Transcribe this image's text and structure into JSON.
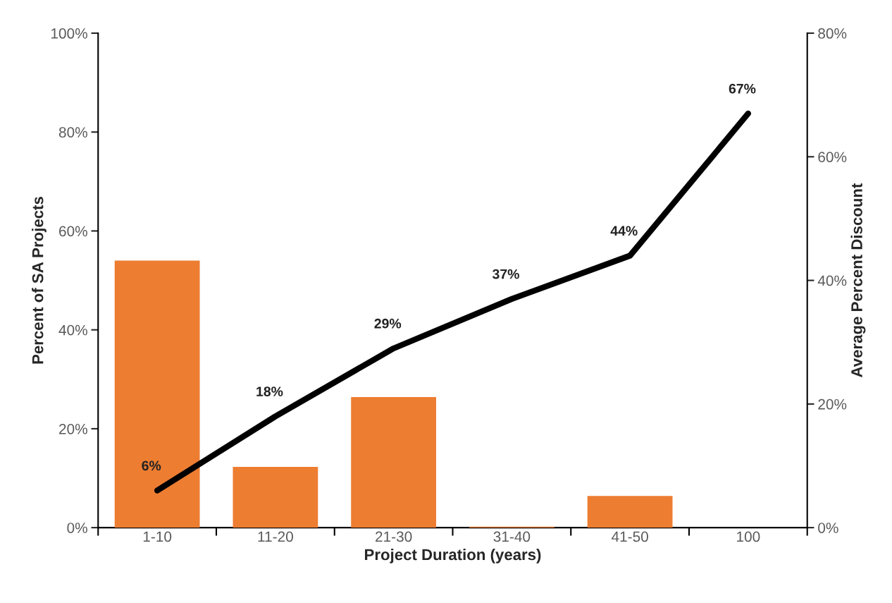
{
  "chart_data": {
    "type": "bar",
    "xlabel": "Project Duration (years)",
    "ylabel": "Percent of SA Projects",
    "y2label": "Average Percent Discount",
    "categories": [
      "1-10",
      "11-20",
      "21-30",
      "31-40",
      "41-50",
      "100"
    ],
    "series": [
      {
        "color": "#ed7d31",
        "values": [
          54,
          12.3,
          26.4,
          0.2,
          6.4,
          null
        ]
      },
      {
        "type": "line",
        "axis": "y2",
        "color": "#000000",
        "values": [
          6,
          18,
          29,
          37,
          44,
          67
        ],
        "value_labels": [
          "6%",
          "18%",
          "29%",
          "37%",
          "44%",
          "67%"
        ]
      }
    ],
    "ylim": [
      0,
      100
    ],
    "yticks": [
      {
        "value": 0,
        "label": "0%"
      },
      {
        "value": 20,
        "label": "20%"
      },
      {
        "value": 40,
        "label": "40%"
      },
      {
        "value": 60,
        "label": "60%"
      },
      {
        "value": 80,
        "label": "80%"
      },
      {
        "value": 100,
        "label": "100%"
      }
    ],
    "y2lim": [
      0,
      80
    ],
    "y2ticks": [
      {
        "value": 0,
        "label": "0%"
      },
      {
        "value": 20,
        "label": "20%"
      },
      {
        "value": 40,
        "label": "40%"
      },
      {
        "value": 60,
        "label": "60%"
      },
      {
        "value": 80,
        "label": "80%"
      }
    ],
    "grid": false,
    "legend": false,
    "marker": "none",
    "line_style": "solid"
  }
}
